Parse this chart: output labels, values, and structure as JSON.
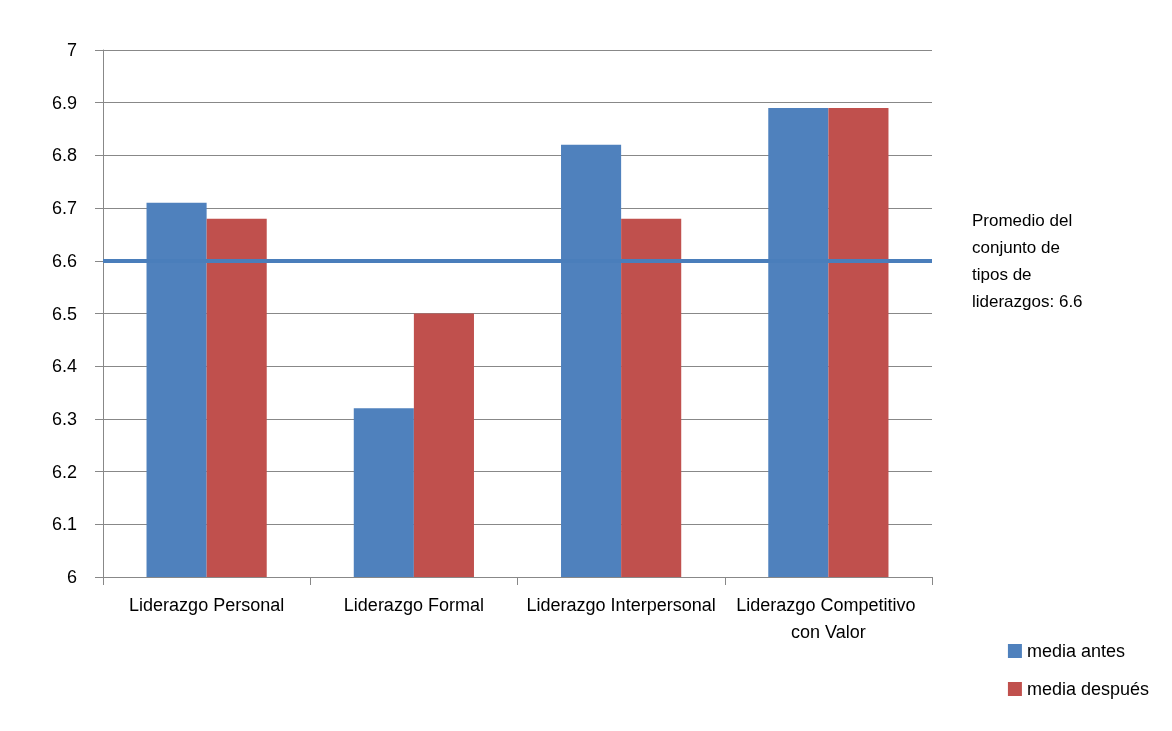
{
  "chart_data": {
    "type": "bar",
    "categories": [
      "Liderazgo Personal",
      "Liderazgo Formal",
      "Liderazgo Interpersonal",
      "Liderazgo Competitivo con Valor"
    ],
    "series": [
      {
        "name": "media antes",
        "color": "#4f81bd",
        "values": [
          6.71,
          6.32,
          6.82,
          6.89
        ]
      },
      {
        "name": "media después",
        "color": "#c0504d",
        "values": [
          6.68,
          6.5,
          6.68,
          6.89
        ]
      }
    ],
    "ylim": [
      6,
      7
    ],
    "yticks": [
      6,
      6.1,
      6.2,
      6.3,
      6.4,
      6.5,
      6.6,
      6.7,
      6.8,
      6.9,
      7
    ],
    "grid": "y",
    "legend": "bottom right",
    "ref_lines": [
      {
        "axis": "y",
        "value": 6.6,
        "label": "Promedio del conjunto de tipos de liderazgos: 6.6",
        "color": "#4a7ebb"
      }
    ]
  }
}
